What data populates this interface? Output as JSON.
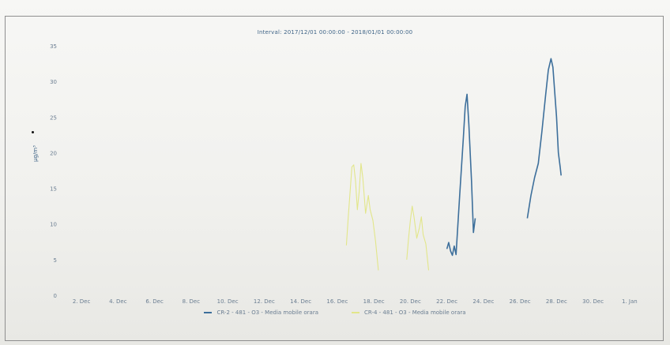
{
  "chart_data": {
    "type": "line",
    "title": "Interval: 2017/12/01 00:00:00 - 2018/01/01 00:00:00",
    "ylabel": "µg/m³",
    "xlabel": "",
    "ylim": [
      0,
      35
    ],
    "yticks": [
      0,
      5,
      10,
      15,
      20,
      25,
      30,
      35
    ],
    "xlim": [
      1,
      33
    ],
    "xticks": [
      {
        "day": 2,
        "label": "2. Dec"
      },
      {
        "day": 4,
        "label": "4. Dec"
      },
      {
        "day": 6,
        "label": "6. Dec"
      },
      {
        "day": 8,
        "label": "8. Dec"
      },
      {
        "day": 10,
        "label": "10. Dec"
      },
      {
        "day": 12,
        "label": "12. Dec"
      },
      {
        "day": 14,
        "label": "14. Dec"
      },
      {
        "day": 16,
        "label": "16. Dec"
      },
      {
        "day": 18,
        "label": "18. Dec"
      },
      {
        "day": 20,
        "label": "20. Dec"
      },
      {
        "day": 22,
        "label": "22. Dec"
      },
      {
        "day": 24,
        "label": "24. Dec"
      },
      {
        "day": 26,
        "label": "26. Dec"
      },
      {
        "day": 28,
        "label": "28. Dec"
      },
      {
        "day": 30,
        "label": "30. Dec"
      },
      {
        "day": 32,
        "label": "1. Jan"
      }
    ],
    "legend_position": "bottom-center",
    "grid": false,
    "series": [
      {
        "name": "CR-2 - 481 - O3 - Media mobile orara",
        "color": "#3d6f9b",
        "points": [
          [
            22.0,
            6.5
          ],
          [
            22.1,
            7.4
          ],
          [
            22.2,
            6.2
          ],
          [
            22.3,
            5.6
          ],
          [
            22.4,
            6.9
          ],
          [
            22.5,
            5.7
          ],
          [
            22.7,
            14.0
          ],
          [
            22.9,
            22.0
          ],
          [
            23.0,
            26.5
          ],
          [
            23.1,
            28.2
          ],
          [
            23.2,
            24.0
          ],
          [
            23.35,
            16.0
          ],
          [
            23.45,
            8.8
          ],
          [
            23.55,
            10.8
          ],
          null,
          [
            26.4,
            10.8
          ],
          [
            26.6,
            14.0
          ],
          [
            26.8,
            16.5
          ],
          [
            27.0,
            18.5
          ],
          [
            27.2,
            23.0
          ],
          [
            27.4,
            28.0
          ],
          [
            27.55,
            31.6
          ],
          [
            27.7,
            33.2
          ],
          [
            27.8,
            32.0
          ],
          [
            27.9,
            28.5
          ],
          [
            28.0,
            25.0
          ],
          [
            28.1,
            20.0
          ],
          [
            28.2,
            18.0
          ],
          [
            28.25,
            16.8
          ]
        ]
      },
      {
        "name": "CR-4 - 481 - O3 - Media mobile orara",
        "color": "#e2e68a",
        "points": [
          [
            16.5,
            7.0
          ],
          [
            16.6,
            11.0
          ],
          [
            16.7,
            14.5
          ],
          [
            16.8,
            18.0
          ],
          [
            16.9,
            18.3
          ],
          [
            17.0,
            16.0
          ],
          [
            17.1,
            12.0
          ],
          [
            17.2,
            14.5
          ],
          [
            17.3,
            18.5
          ],
          [
            17.4,
            16.5
          ],
          [
            17.55,
            11.5
          ],
          [
            17.7,
            14.0
          ],
          [
            17.8,
            12.0
          ],
          [
            17.95,
            10.5
          ],
          [
            18.1,
            7.5
          ],
          [
            18.25,
            3.5
          ],
          null,
          [
            19.8,
            5.0
          ],
          [
            19.9,
            8.0
          ],
          [
            20.0,
            10.5
          ],
          [
            20.1,
            12.5
          ],
          [
            20.2,
            11.0
          ],
          [
            20.35,
            8.0
          ],
          [
            20.5,
            9.5
          ],
          [
            20.6,
            11.0
          ],
          [
            20.7,
            8.5
          ],
          [
            20.85,
            7.2
          ],
          [
            21.0,
            3.5
          ]
        ]
      }
    ]
  }
}
